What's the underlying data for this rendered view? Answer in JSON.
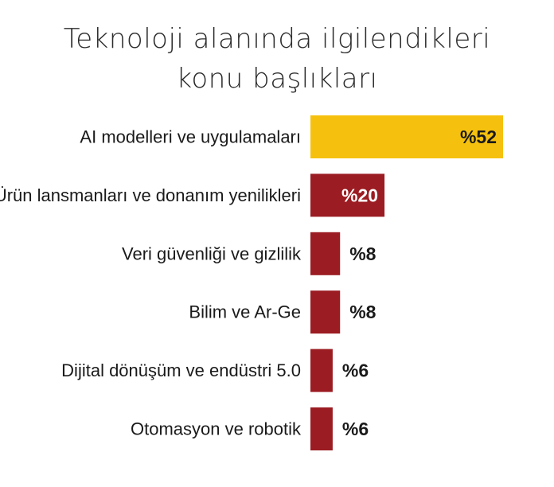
{
  "chart_data": {
    "type": "bar",
    "orientation": "horizontal",
    "title_lines": [
      "Teknoloji alanında ilgilendikleri",
      "konu başlıkları"
    ],
    "categories": [
      "AI modelleri ve uygulamaları",
      "Ürün lansmanları ve donanım yenilikleri",
      "Veri güvenliği ve gizlilik",
      "Bilim ve Ar-Ge",
      "Dijital dönüşüm ve endüstri 5.0",
      "Otomasyon ve robotik"
    ],
    "values": [
      52,
      20,
      8,
      8,
      6,
      6
    ],
    "value_labels": [
      "%52",
      "%20",
      "%8",
      "%8",
      "%6",
      "%6"
    ],
    "colors": [
      "#f6c10e",
      "#9b1c22",
      "#9b1c22",
      "#9b1c22",
      "#9b1c22",
      "#9b1c22"
    ],
    "xlim": [
      0,
      52
    ],
    "grid": false,
    "legend": "none"
  }
}
